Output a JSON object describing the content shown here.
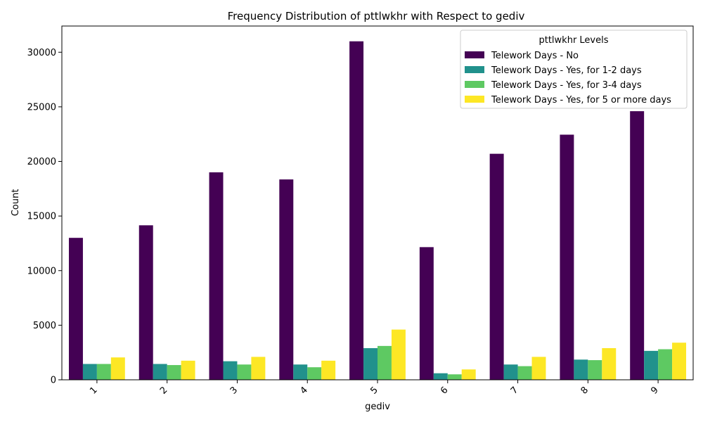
{
  "chart_data": {
    "type": "bar",
    "title": "Frequency Distribution of pttlwkhr with Respect to gediv",
    "xlabel": "gediv",
    "ylabel": "Count",
    "categories": [
      "1",
      "2",
      "3",
      "4",
      "5",
      "6",
      "7",
      "8",
      "9"
    ],
    "ylim": [
      0,
      32400
    ],
    "yticks": [
      0,
      5000,
      10000,
      15000,
      20000,
      25000,
      30000
    ],
    "grid": false,
    "legend": {
      "title": "pttlwkhr Levels",
      "placement": "top-right"
    },
    "series": [
      {
        "name": "Telework Days - No",
        "color": "#440154",
        "values": [
          13000,
          14150,
          19000,
          18350,
          31000,
          12150,
          20700,
          22450,
          24600
        ]
      },
      {
        "name": "Telework Days - Yes, for 1-2 days",
        "color": "#21918c",
        "values": [
          1450,
          1450,
          1700,
          1400,
          2900,
          600,
          1400,
          1850,
          2650
        ]
      },
      {
        "name": "Telework Days - Yes, for 3-4 days",
        "color": "#5ec962",
        "values": [
          1450,
          1350,
          1400,
          1150,
          3100,
          500,
          1250,
          1800,
          2800
        ]
      },
      {
        "name": "Telework Days - Yes, for 5 or more days",
        "color": "#fde725",
        "values": [
          2050,
          1750,
          2100,
          1750,
          4600,
          950,
          2100,
          2900,
          3400
        ]
      }
    ]
  }
}
